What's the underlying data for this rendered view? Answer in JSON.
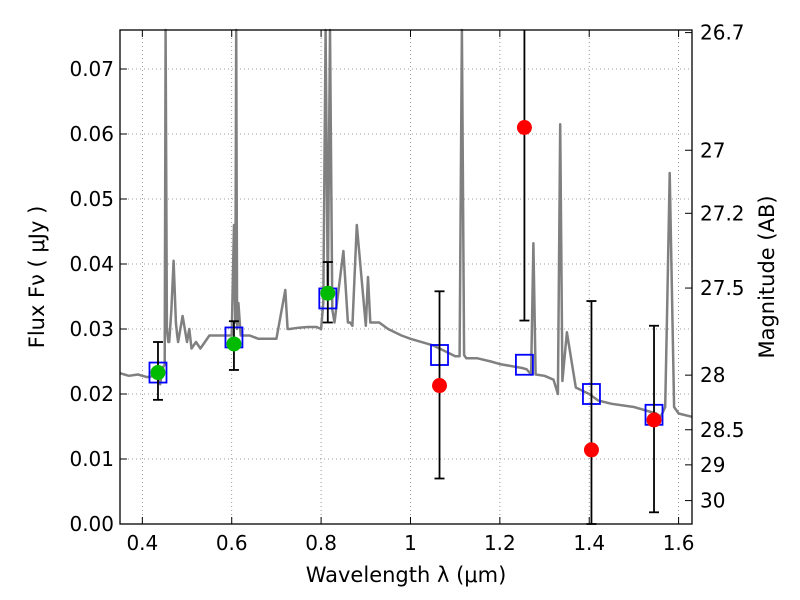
{
  "chart_data": {
    "type": "scatter",
    "xlabel": "Wavelength  λ (μm)",
    "ylabel": "Flux  Fν  ( μJy )",
    "y2label": "Magnitude (AB)",
    "xlim": [
      0.35,
      1.63
    ],
    "ylim": [
      0.0,
      0.076
    ],
    "grid": true,
    "x_ticks": [
      0.4,
      0.6,
      0.8,
      1.0,
      1.2,
      1.4,
      1.6
    ],
    "x_tick_labels": [
      "0.4",
      "0.6",
      "0.8",
      "1",
      "1.2",
      "1.4",
      "1.6"
    ],
    "y_ticks": [
      0.0,
      0.01,
      0.02,
      0.03,
      0.04,
      0.05,
      0.06,
      0.07
    ],
    "y_tick_labels": [
      "0.00",
      "0.01",
      "0.02",
      "0.03",
      "0.04",
      "0.05",
      "0.06",
      "0.07"
    ],
    "y2_tick_labels": [
      {
        "label": "26.7",
        "flux": 0.0756
      },
      {
        "label": "27",
        "flux": 0.0575
      },
      {
        "label": "27.2",
        "flux": 0.0478
      },
      {
        "label": "27.5",
        "flux": 0.0363
      },
      {
        "label": "28",
        "flux": 0.0229
      },
      {
        "label": "28.5",
        "flux": 0.0145
      },
      {
        "label": "29",
        "flux": 0.0091
      },
      {
        "label": "30",
        "flux": 0.0036
      }
    ],
    "colors": {
      "model_line": "#808080",
      "model_photometry": "#0000ff",
      "detections": "#00bb00",
      "low_sn": "#ff0000",
      "errorbar": "#000000",
      "grid": "#808080"
    },
    "series": [
      {
        "kind": "line",
        "color": "#808080",
        "x": [
          0.35,
          0.37,
          0.39,
          0.41,
          0.43,
          0.44,
          0.445,
          0.45,
          0.452,
          0.455,
          0.458,
          0.46,
          0.462,
          0.465,
          0.47,
          0.475,
          0.478,
          0.48,
          0.49,
          0.5,
          0.505,
          0.51,
          0.52,
          0.53,
          0.55,
          0.58,
          0.6,
          0.605,
          0.608,
          0.61,
          0.612,
          0.615,
          0.62,
          0.64,
          0.66,
          0.68,
          0.7,
          0.72,
          0.725,
          0.73,
          0.75,
          0.77,
          0.79,
          0.8,
          0.805,
          0.81,
          0.815,
          0.82,
          0.825,
          0.83,
          0.85,
          0.86,
          0.865,
          0.87,
          0.88,
          0.9,
          0.905,
          0.91,
          0.93,
          0.95,
          0.98,
          1.0,
          1.05,
          1.08,
          1.1,
          1.11,
          1.115,
          1.12,
          1.125,
          1.13,
          1.15,
          1.18,
          1.2,
          1.25,
          1.26,
          1.27,
          1.275,
          1.28,
          1.3,
          1.32,
          1.33,
          1.335,
          1.34,
          1.35,
          1.37,
          1.4,
          1.42,
          1.45,
          1.5,
          1.55,
          1.56,
          1.57,
          1.575,
          1.58,
          1.59,
          1.6,
          1.63
        ],
        "y": [
          0.0232,
          0.0228,
          0.023,
          0.0226,
          0.0228,
          0.0215,
          0.024,
          0.0245,
          0.076,
          0.03,
          0.028,
          0.028,
          0.03,
          0.033,
          0.0405,
          0.031,
          0.029,
          0.028,
          0.032,
          0.028,
          0.03,
          0.027,
          0.028,
          0.027,
          0.029,
          0.029,
          0.029,
          0.046,
          0.031,
          0.076,
          0.03,
          0.034,
          0.029,
          0.029,
          0.0285,
          0.0285,
          0.0285,
          0.036,
          0.03,
          0.03,
          0.0302,
          0.0303,
          0.0303,
          0.03,
          0.034,
          0.076,
          0.035,
          0.076,
          0.033,
          0.031,
          0.042,
          0.031,
          0.031,
          0.0305,
          0.046,
          0.0305,
          0.038,
          0.031,
          0.031,
          0.03,
          0.029,
          0.0285,
          0.0275,
          0.0265,
          0.0258,
          0.0258,
          0.076,
          0.026,
          0.0255,
          0.0255,
          0.0255,
          0.025,
          0.0246,
          0.024,
          0.0238,
          0.023,
          0.0432,
          0.023,
          0.0228,
          0.0222,
          0.02,
          0.0615,
          0.022,
          0.0295,
          0.021,
          0.02,
          0.019,
          0.0185,
          0.018,
          0.017,
          0.0165,
          0.018,
          0.035,
          0.054,
          0.018,
          0.017,
          0.0165
        ]
      },
      {
        "kind": "open-square",
        "name": "",
        "color": "#0000ff",
        "x": [
          0.435,
          0.605,
          0.815,
          1.065,
          1.255,
          1.405,
          1.545
        ],
        "y": [
          0.0233,
          0.0287,
          0.0347,
          0.026,
          0.0245,
          0.02,
          0.0168
        ]
      },
      {
        "kind": "filled-circle",
        "name": "",
        "color": "#00bb00",
        "x": [
          0.435,
          0.605,
          0.815
        ],
        "y": [
          0.0233,
          0.0277,
          0.0355
        ],
        "yerr_low": [
          0.0042,
          0.004,
          0.0045
        ],
        "yerr_high": [
          0.0047,
          0.0035,
          0.0048
        ]
      },
      {
        "kind": "filled-circle",
        "name": "",
        "color": "#ff0000",
        "x": [
          1.065,
          1.255,
          1.405,
          1.545
        ],
        "y": [
          0.0213,
          0.061,
          0.0114,
          0.016
        ],
        "yerr_low": [
          0.0143,
          0.0297,
          0.0114,
          0.0142
        ],
        "yerr_high": [
          0.0145,
          0.016,
          0.0229,
          0.0145
        ]
      }
    ]
  }
}
